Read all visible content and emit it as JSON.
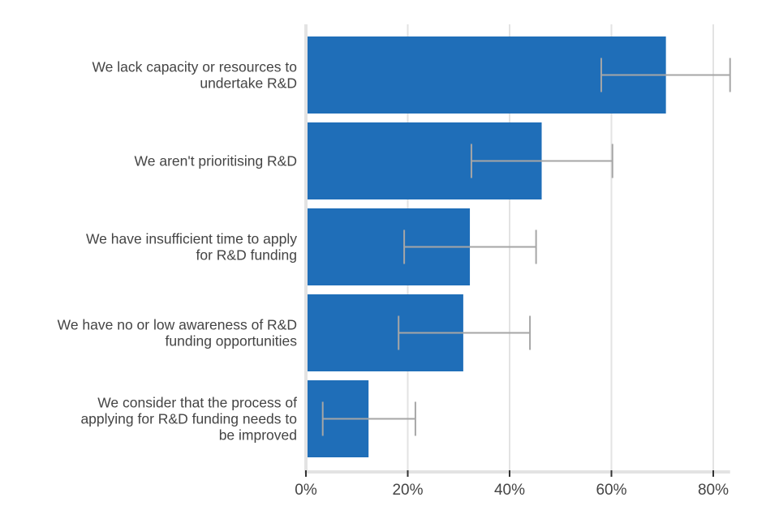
{
  "chart_data": {
    "type": "bar",
    "orientation": "horizontal",
    "categories": [
      [
        "We lack capacity or resources to",
        "undertake R&D"
      ],
      [
        "We aren't prioritising R&D"
      ],
      [
        "We have insufficient time to apply",
        "for R&D funding"
      ],
      [
        "We have no or low awareness of R&D",
        "funding opportunities"
      ],
      [
        "We consider that the process of",
        "applying for R&D funding needs to",
        "be improved"
      ]
    ],
    "values": [
      70.7,
      46.3,
      32.2,
      30.9,
      12.3
    ],
    "error_low": [
      58.0,
      32.5,
      19.3,
      18.2,
      3.3
    ],
    "error_high": [
      83.3,
      60.2,
      45.2,
      44.0,
      21.5
    ],
    "xlim": [
      0,
      83.3
    ],
    "x_ticks": [
      0,
      20,
      40,
      60,
      80
    ],
    "x_tick_labels": [
      "0%",
      "20%",
      "40%",
      "60%",
      "80%"
    ],
    "grid": true,
    "colors": {
      "bar": "#1f6eb8",
      "error": "#a6a6a6",
      "grid": "#e3e3e3"
    }
  }
}
